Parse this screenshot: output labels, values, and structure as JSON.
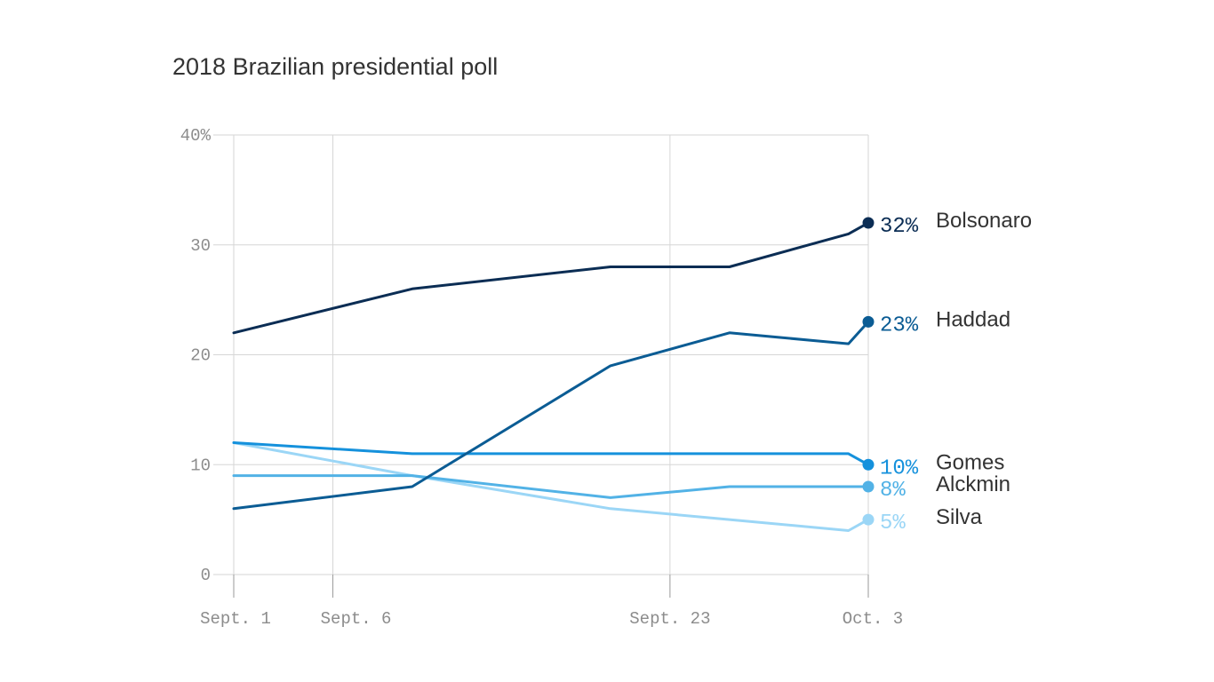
{
  "chart_data": {
    "type": "line",
    "title": "2018 Brazilian presidential poll",
    "xlabel": "",
    "ylabel": "",
    "x_axis": {
      "type": "date",
      "range": [
        "2018-09-01",
        "2018-10-03"
      ],
      "ticks": [
        {
          "date": "2018-09-01",
          "label": "Sept. 1"
        },
        {
          "date": "2018-09-06",
          "label": "Sept. 6"
        },
        {
          "date": "2018-09-23",
          "label": "Sept. 23"
        },
        {
          "date": "2018-10-03",
          "label": "Oct. 3"
        }
      ]
    },
    "y_axis": {
      "range": [
        0,
        40
      ],
      "ticks": [
        {
          "value": 0,
          "label": "0"
        },
        {
          "value": 10,
          "label": "10"
        },
        {
          "value": 20,
          "label": "20"
        },
        {
          "value": 30,
          "label": "30"
        },
        {
          "value": 40,
          "label": "40%"
        }
      ]
    },
    "grid": true,
    "legend": "end-of-line labels",
    "series": [
      {
        "name": "Bolsonaro",
        "end_label": "32%",
        "color": "#0b2d54",
        "points": [
          {
            "x": "2018-09-01",
            "y": 22
          },
          {
            "x": "2018-09-10",
            "y": 26
          },
          {
            "x": "2018-09-20",
            "y": 28
          },
          {
            "x": "2018-09-26",
            "y": 28
          },
          {
            "x": "2018-10-02",
            "y": 31
          },
          {
            "x": "2018-10-03",
            "y": 32
          }
        ]
      },
      {
        "name": "Haddad",
        "end_label": "23%",
        "color": "#0b5c94",
        "points": [
          {
            "x": "2018-09-01",
            "y": 6
          },
          {
            "x": "2018-09-10",
            "y": 8
          },
          {
            "x": "2018-09-20",
            "y": 19
          },
          {
            "x": "2018-09-26",
            "y": 22
          },
          {
            "x": "2018-10-02",
            "y": 21
          },
          {
            "x": "2018-10-03",
            "y": 23
          }
        ]
      },
      {
        "name": "Gomes",
        "end_label": "10%",
        "color": "#1591dc",
        "points": [
          {
            "x": "2018-09-01",
            "y": 12
          },
          {
            "x": "2018-09-10",
            "y": 11
          },
          {
            "x": "2018-09-20",
            "y": 11
          },
          {
            "x": "2018-09-26",
            "y": 11
          },
          {
            "x": "2018-10-02",
            "y": 11
          },
          {
            "x": "2018-10-03",
            "y": 10
          }
        ]
      },
      {
        "name": "Alckmin",
        "end_label": "8%",
        "color": "#52b2e6",
        "points": [
          {
            "x": "2018-09-01",
            "y": 9
          },
          {
            "x": "2018-09-10",
            "y": 9
          },
          {
            "x": "2018-09-20",
            "y": 7
          },
          {
            "x": "2018-09-26",
            "y": 8
          },
          {
            "x": "2018-10-02",
            "y": 8
          },
          {
            "x": "2018-10-03",
            "y": 8
          }
        ]
      },
      {
        "name": "Silva",
        "end_label": "5%",
        "color": "#9bd6f6",
        "points": [
          {
            "x": "2018-09-01",
            "y": 12
          },
          {
            "x": "2018-09-10",
            "y": 9
          },
          {
            "x": "2018-09-20",
            "y": 6
          },
          {
            "x": "2018-09-26",
            "y": 5
          },
          {
            "x": "2018-10-02",
            "y": 4
          },
          {
            "x": "2018-10-03",
            "y": 5
          }
        ]
      }
    ]
  }
}
